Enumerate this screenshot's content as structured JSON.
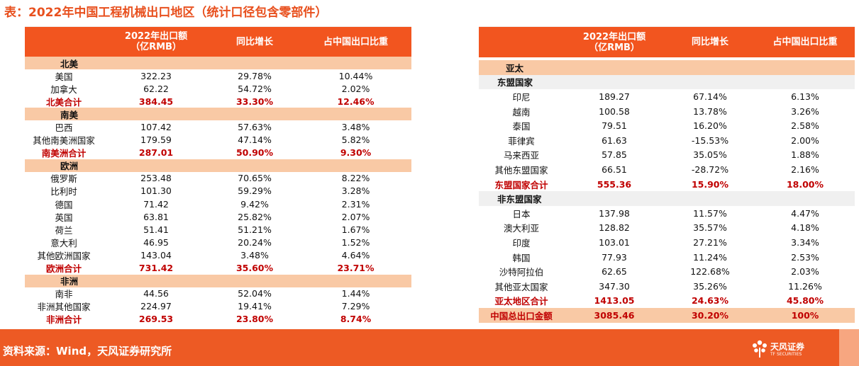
{
  "title": "表：2022年中国工程机械出口地区（统计口径包含零部件）",
  "headers": {
    "col1_line1": "2022年出口额",
    "col1_line2": "（亿RMB）",
    "col2": "同比增长",
    "col3": "占中国出口比重"
  },
  "left_rows": [
    {
      "type": "band",
      "name": "北美"
    },
    {
      "type": "row",
      "name": "美国",
      "v": "322.23",
      "g": "29.78%",
      "s": "10.44%"
    },
    {
      "type": "row",
      "name": "加拿大",
      "v": "62.22",
      "g": "54.72%",
      "s": "2.02%"
    },
    {
      "type": "total",
      "name": "北美合计",
      "v": "384.45",
      "g": "33.30%",
      "s": "12.46%"
    },
    {
      "type": "band",
      "name": "南美"
    },
    {
      "type": "row",
      "name": "巴西",
      "v": "107.42",
      "g": "57.63%",
      "s": "3.48%"
    },
    {
      "type": "row",
      "name": "其他南美洲国家",
      "v": "179.59",
      "g": "47.14%",
      "s": "5.82%"
    },
    {
      "type": "total",
      "name": "南美洲合计",
      "v": "287.01",
      "g": "50.90%",
      "s": "9.30%"
    },
    {
      "type": "band",
      "name": "欧洲"
    },
    {
      "type": "row",
      "name": "俄罗斯",
      "v": "253.48",
      "g": "70.65%",
      "s": "8.22%"
    },
    {
      "type": "row",
      "name": "比利时",
      "v": "101.30",
      "g": "59.29%",
      "s": "3.28%"
    },
    {
      "type": "row",
      "name": "德国",
      "v": "71.42",
      "g": "9.42%",
      "s": "2.31%"
    },
    {
      "type": "row",
      "name": "英国",
      "v": "63.81",
      "g": "25.82%",
      "s": "2.07%"
    },
    {
      "type": "row",
      "name": "荷兰",
      "v": "51.41",
      "g": "51.21%",
      "s": "1.67%"
    },
    {
      "type": "row",
      "name": "意大利",
      "v": "46.95",
      "g": "20.24%",
      "s": "1.52%"
    },
    {
      "type": "row",
      "name": "其他欧洲国家",
      "v": "143.04",
      "g": "3.48%",
      "s": "4.64%"
    },
    {
      "type": "total",
      "name": "欧洲合计",
      "v": "731.42",
      "g": "35.60%",
      "s": "23.71%"
    },
    {
      "type": "band",
      "name": "非洲"
    },
    {
      "type": "row",
      "name": "南非",
      "v": "44.56",
      "g": "52.04%",
      "s": "1.44%"
    },
    {
      "type": "row",
      "name": "非洲其他国家",
      "v": "224.97",
      "g": "19.41%",
      "s": "7.29%"
    },
    {
      "type": "total",
      "name": "非洲合计",
      "v": "269.53",
      "g": "23.80%",
      "s": "8.74%"
    }
  ],
  "right_rows": [
    {
      "type": "band",
      "name": "亚太"
    },
    {
      "type": "sub",
      "name": "东盟国家"
    },
    {
      "type": "row",
      "name": "印尼",
      "v": "189.27",
      "g": "67.14%",
      "s": "6.13%"
    },
    {
      "type": "row",
      "name": "越南",
      "v": "100.58",
      "g": "13.78%",
      "s": "3.26%"
    },
    {
      "type": "row",
      "name": "泰国",
      "v": "79.51",
      "g": "16.20%",
      "s": "2.58%"
    },
    {
      "type": "row",
      "name": "菲律宾",
      "v": "61.63",
      "g": "-15.53%",
      "s": "2.00%"
    },
    {
      "type": "row",
      "name": "马来西亚",
      "v": "57.85",
      "g": "35.05%",
      "s": "1.88%"
    },
    {
      "type": "row",
      "name": "其他东盟国家",
      "v": "66.51",
      "g": "-28.72%",
      "s": "2.16%"
    },
    {
      "type": "total",
      "name": "东盟国家合计",
      "v": "555.36",
      "g": "15.90%",
      "s": "18.00%"
    },
    {
      "type": "sub",
      "name": "非东盟国家"
    },
    {
      "type": "row",
      "name": "日本",
      "v": "137.98",
      "g": "11.57%",
      "s": "4.47%"
    },
    {
      "type": "row",
      "name": "澳大利亚",
      "v": "128.82",
      "g": "35.57%",
      "s": "4.18%"
    },
    {
      "type": "row",
      "name": "印度",
      "v": "103.01",
      "g": "27.21%",
      "s": "3.34%"
    },
    {
      "type": "row",
      "name": "韩国",
      "v": "77.93",
      "g": "11.24%",
      "s": "2.53%"
    },
    {
      "type": "row",
      "name": "沙特阿拉伯",
      "v": "62.65",
      "g": "122.68%",
      "s": "2.03%"
    },
    {
      "type": "row",
      "name": "其他亚太国家",
      "v": "347.30",
      "g": "35.26%",
      "s": "11.26%"
    },
    {
      "type": "total",
      "name": "亚太地区合计",
      "v": "1413.05",
      "g": "24.63%",
      "s": "45.80%"
    },
    {
      "type": "grand",
      "name": "中国总出口金额",
      "v": "3085.46",
      "g": "30.20%",
      "s": "100%"
    }
  ],
  "footer": {
    "source": "资料来源：Wind，天风证券研究所",
    "logo_text": "天风证券",
    "logo_sub": "TF SECURITIES"
  },
  "colors": {
    "accent": "#f2551f",
    "band": "#f9c9a5",
    "total_text": "#c00000",
    "footer": "#ed5a24"
  }
}
